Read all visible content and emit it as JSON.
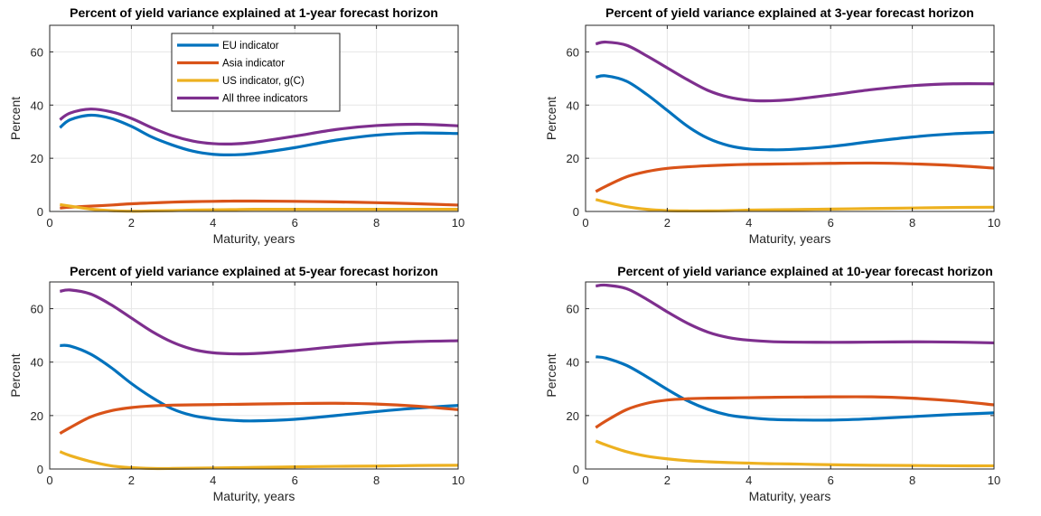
{
  "chart_data": [
    {
      "type": "line",
      "title": "Percent of yield variance explained at 1-year forecast horizon",
      "xlabel": "Maturity, years",
      "ylabel": "Percent",
      "xlim": [
        0,
        10
      ],
      "ylim": [
        0,
        70
      ],
      "xticks": [
        "0",
        "2",
        "4",
        "6",
        "8",
        "10"
      ],
      "yticks": [
        "0",
        "20",
        "40",
        "60"
      ],
      "grid": true,
      "legend": "upper-center",
      "x": [
        0.25,
        0.5,
        1,
        1.5,
        2,
        2.5,
        3,
        3.5,
        4,
        4.5,
        5,
        6,
        7,
        8,
        9,
        10
      ],
      "series": [
        {
          "name": "EU indicator",
          "color": "#0072BD",
          "values": [
            31.5,
            34.5,
            36.2,
            35,
            32,
            28,
            25,
            22.7,
            21.5,
            21.3,
            21.8,
            24,
            26.8,
            28.7,
            29.5,
            29.3
          ]
        },
        {
          "name": "Asia indicator",
          "color": "#D95319",
          "values": [
            1.3,
            1.6,
            2,
            2.4,
            2.9,
            3.2,
            3.5,
            3.7,
            3.8,
            3.9,
            3.9,
            3.8,
            3.6,
            3.3,
            2.9,
            2.4
          ]
        },
        {
          "name": "US indicator, g(C)",
          "color": "#EDB120",
          "values": [
            2.6,
            2,
            0.9,
            0.3,
            0.1,
            0.2,
            0.3,
            0.5,
            0.6,
            0.7,
            0.8,
            0.8,
            0.8,
            0.8,
            0.8,
            0.8
          ]
        },
        {
          "name": "All three indicators",
          "color": "#7E2F8E",
          "values": [
            34.5,
            37,
            38.5,
            37.5,
            35,
            31.5,
            28.5,
            26.5,
            25.5,
            25.4,
            26,
            28.3,
            30.8,
            32.3,
            32.8,
            32.2
          ]
        }
      ]
    },
    {
      "type": "line",
      "title": "Percent of yield variance explained at 3-year forecast horizon",
      "xlabel": "Maturity, years",
      "ylabel": "Percent",
      "xlim": [
        0,
        10
      ],
      "ylim": [
        0,
        70
      ],
      "xticks": [
        "0",
        "2",
        "4",
        "6",
        "8",
        "10"
      ],
      "yticks": [
        "0",
        "20",
        "40",
        "60"
      ],
      "grid": true,
      "x": [
        0.25,
        0.5,
        1,
        1.5,
        2,
        2.5,
        3,
        3.5,
        4,
        4.5,
        5,
        6,
        7,
        8,
        9,
        10
      ],
      "series": [
        {
          "name": "EU indicator",
          "color": "#0072BD",
          "values": [
            50.5,
            51,
            49,
            44,
            38,
            32,
            27.5,
            24.8,
            23.5,
            23.2,
            23.3,
            24.4,
            26.3,
            28,
            29.2,
            29.8
          ]
        },
        {
          "name": "Asia indicator",
          "color": "#D95319",
          "values": [
            7.5,
            9.5,
            13,
            15,
            16.2,
            16.8,
            17.2,
            17.5,
            17.7,
            17.8,
            17.9,
            18.1,
            18.2,
            17.9,
            17.3,
            16.3
          ]
        },
        {
          "name": "US indicator, g(C)",
          "color": "#EDB120",
          "values": [
            4.5,
            3.5,
            1.8,
            0.8,
            0.3,
            0.2,
            0.2,
            0.3,
            0.5,
            0.6,
            0.7,
            0.9,
            1.1,
            1.3,
            1.5,
            1.6
          ]
        },
        {
          "name": "All three indicators",
          "color": "#7E2F8E",
          "values": [
            63,
            63.7,
            62.5,
            58.5,
            54,
            49.5,
            45.5,
            43,
            41.8,
            41.6,
            42,
            43.8,
            45.8,
            47.3,
            48,
            48
          ]
        }
      ]
    },
    {
      "type": "line",
      "title": "Percent of yield variance explained at 5-year forecast horizon",
      "xlabel": "Maturity, years",
      "ylabel": "Percent",
      "xlim": [
        0,
        10
      ],
      "ylim": [
        0,
        70
      ],
      "xticks": [
        "0",
        "2",
        "4",
        "6",
        "8",
        "10"
      ],
      "yticks": [
        "0",
        "20",
        "40",
        "60"
      ],
      "grid": true,
      "x": [
        0.25,
        0.5,
        1,
        1.5,
        2,
        2.5,
        3,
        3.5,
        4,
        4.5,
        5,
        6,
        7,
        8,
        9,
        10
      ],
      "series": [
        {
          "name": "EU indicator",
          "color": "#0072BD",
          "values": [
            46.2,
            46,
            43,
            38,
            32,
            26.8,
            22.5,
            20,
            18.8,
            18.2,
            18,
            18.6,
            20,
            21.5,
            22.8,
            23.8
          ]
        },
        {
          "name": "Asia indicator",
          "color": "#D95319",
          "values": [
            13.3,
            15.5,
            19.5,
            21.8,
            23,
            23.6,
            23.9,
            24,
            24.1,
            24.2,
            24.3,
            24.5,
            24.6,
            24.3,
            23.5,
            22.2
          ]
        },
        {
          "name": "US indicator, g(C)",
          "color": "#EDB120",
          "values": [
            6.5,
            5,
            2.8,
            1.2,
            0.5,
            0.2,
            0.2,
            0.3,
            0.4,
            0.5,
            0.6,
            0.8,
            1,
            1.1,
            1.3,
            1.4
          ]
        },
        {
          "name": "All three indicators",
          "color": "#7E2F8E",
          "values": [
            66.5,
            67,
            65.5,
            61.5,
            56.5,
            51.5,
            47.5,
            44.8,
            43.5,
            43.1,
            43.2,
            44.3,
            45.8,
            47,
            47.7,
            48
          ]
        }
      ]
    },
    {
      "type": "line",
      "title": "Percent of yield variance explained at 10-year forecast horizon",
      "xlabel": "Maturity, years",
      "ylabel": "Percent",
      "xlim": [
        0,
        10
      ],
      "ylim": [
        0,
        70
      ],
      "xticks": [
        "0",
        "2",
        "4",
        "6",
        "8",
        "10"
      ],
      "yticks": [
        "0",
        "20",
        "40",
        "60"
      ],
      "grid": true,
      "x": [
        0.25,
        0.5,
        1,
        1.5,
        2,
        2.5,
        3,
        3.5,
        4,
        4.5,
        5,
        6,
        7,
        8,
        9,
        10
      ],
      "series": [
        {
          "name": "EU indicator",
          "color": "#0072BD",
          "values": [
            42,
            41.5,
            38.8,
            34.5,
            29.8,
            25.5,
            22.3,
            20.2,
            19.2,
            18.6,
            18.4,
            18.3,
            18.8,
            19.6,
            20.4,
            21
          ]
        },
        {
          "name": "Asia indicator",
          "color": "#D95319",
          "values": [
            15.5,
            18,
            22.2,
            24.6,
            25.8,
            26.3,
            26.5,
            26.6,
            26.7,
            26.8,
            26.9,
            27,
            27,
            26.5,
            25.5,
            24
          ]
        },
        {
          "name": "US indicator, g(C)",
          "color": "#EDB120",
          "values": [
            10.5,
            9,
            6.5,
            4.8,
            3.8,
            3.1,
            2.7,
            2.4,
            2.2,
            2,
            1.9,
            1.6,
            1.4,
            1.3,
            1.2,
            1.2
          ]
        },
        {
          "name": "All three indicators",
          "color": "#7E2F8E",
          "values": [
            68.5,
            68.8,
            67.5,
            63.5,
            58.8,
            54.5,
            51.2,
            49.2,
            48.2,
            47.7,
            47.5,
            47.4,
            47.5,
            47.6,
            47.5,
            47.2
          ]
        }
      ]
    }
  ]
}
